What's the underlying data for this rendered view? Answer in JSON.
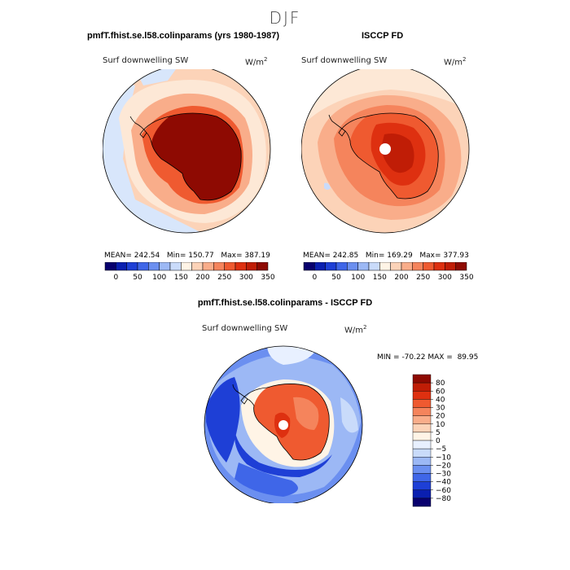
{
  "page": {
    "title": "DJF"
  },
  "chart_data": [
    {
      "type": "heatmap",
      "projection": "south-polar-stereographic",
      "title": "pmfT.fhist.se.l58.colinparams (yrs 1980-1987)",
      "field": "Surf downwelling SW",
      "units": "W/m",
      "units_exp": "2",
      "stats": {
        "mean_label": "MEAN=",
        "mean": "242.54",
        "min_label": "Min=",
        "min": "150.77",
        "max_label": "Max=",
        "max": "387.19"
      },
      "colorbar": {
        "orientation": "horizontal",
        "ticks": [
          "0",
          "50",
          "100",
          "150",
          "200",
          "250",
          "300",
          "350"
        ],
        "colors": [
          "#08006e",
          "#0a1fb0",
          "#1e3fd6",
          "#3f66e8",
          "#6b8ff0",
          "#9cb8f5",
          "#c9dbfa",
          "#fff4e6",
          "#fcd3b8",
          "#f9ad8a",
          "#f5845c",
          "#ef5a30",
          "#de3010",
          "#c01d06",
          "#8e0a02"
        ]
      },
      "pattern": "continent ~350+ W/m2 (dark red), surrounding ocean 200-250, Atlantic/Pacific sector sea areas 150-200 (light blue)"
    },
    {
      "type": "heatmap",
      "projection": "south-polar-stereographic",
      "title": "ISCCP FD",
      "field": "Surf downwelling SW",
      "units": "W/m",
      "units_exp": "2",
      "stats": {
        "mean_label": "MEAN=",
        "mean": "242.85",
        "min_label": "Min=",
        "min": "169.29",
        "max_label": "Max=",
        "max": "377.93"
      },
      "colorbar": {
        "orientation": "horizontal",
        "ticks": [
          "0",
          "50",
          "100",
          "150",
          "200",
          "250",
          "300",
          "350"
        ],
        "colors": [
          "#08006e",
          "#0a1fb0",
          "#1e3fd6",
          "#3f66e8",
          "#6b8ff0",
          "#9cb8f5",
          "#c9dbfa",
          "#fff4e6",
          "#fcd3b8",
          "#f9ad8a",
          "#f5845c",
          "#ef5a30",
          "#de3010",
          "#c01d06",
          "#8e0a02"
        ]
      },
      "pattern": "continent 300-350, plateau interior highest, white hole at pole, ocean 200-250"
    },
    {
      "type": "heatmap",
      "projection": "south-polar-stereographic",
      "title": "pmfT.fhist.se.l58.colinparams - ISCCP FD",
      "field": "Surf downwelling SW",
      "units": "W/m",
      "units_exp": "2",
      "stats": {
        "min_label": "MIN =",
        "min": "-70.22",
        "max_label": "MAX =",
        "max": "89.95"
      },
      "colorbar": {
        "orientation": "vertical",
        "ticks": [
          "80",
          "60",
          "40",
          "30",
          "20",
          "10",
          "5",
          "0",
          "−5",
          "−10",
          "−20",
          "−30",
          "−40",
          "−60",
          "−80"
        ],
        "colors": [
          "#8e0a02",
          "#c01d06",
          "#de3010",
          "#ef5a30",
          "#f5845c",
          "#f9ad8a",
          "#fcd3b8",
          "#fff4e6",
          "#e8f0ff",
          "#c9dbfa",
          "#9cb8f5",
          "#6b8ff0",
          "#3f66e8",
          "#1e3fd6",
          "#0a1fb0",
          "#08006e"
        ]
      },
      "pattern": "positive bias over Antarctica (red), negative bias over Southern Ocean (blue)"
    }
  ]
}
